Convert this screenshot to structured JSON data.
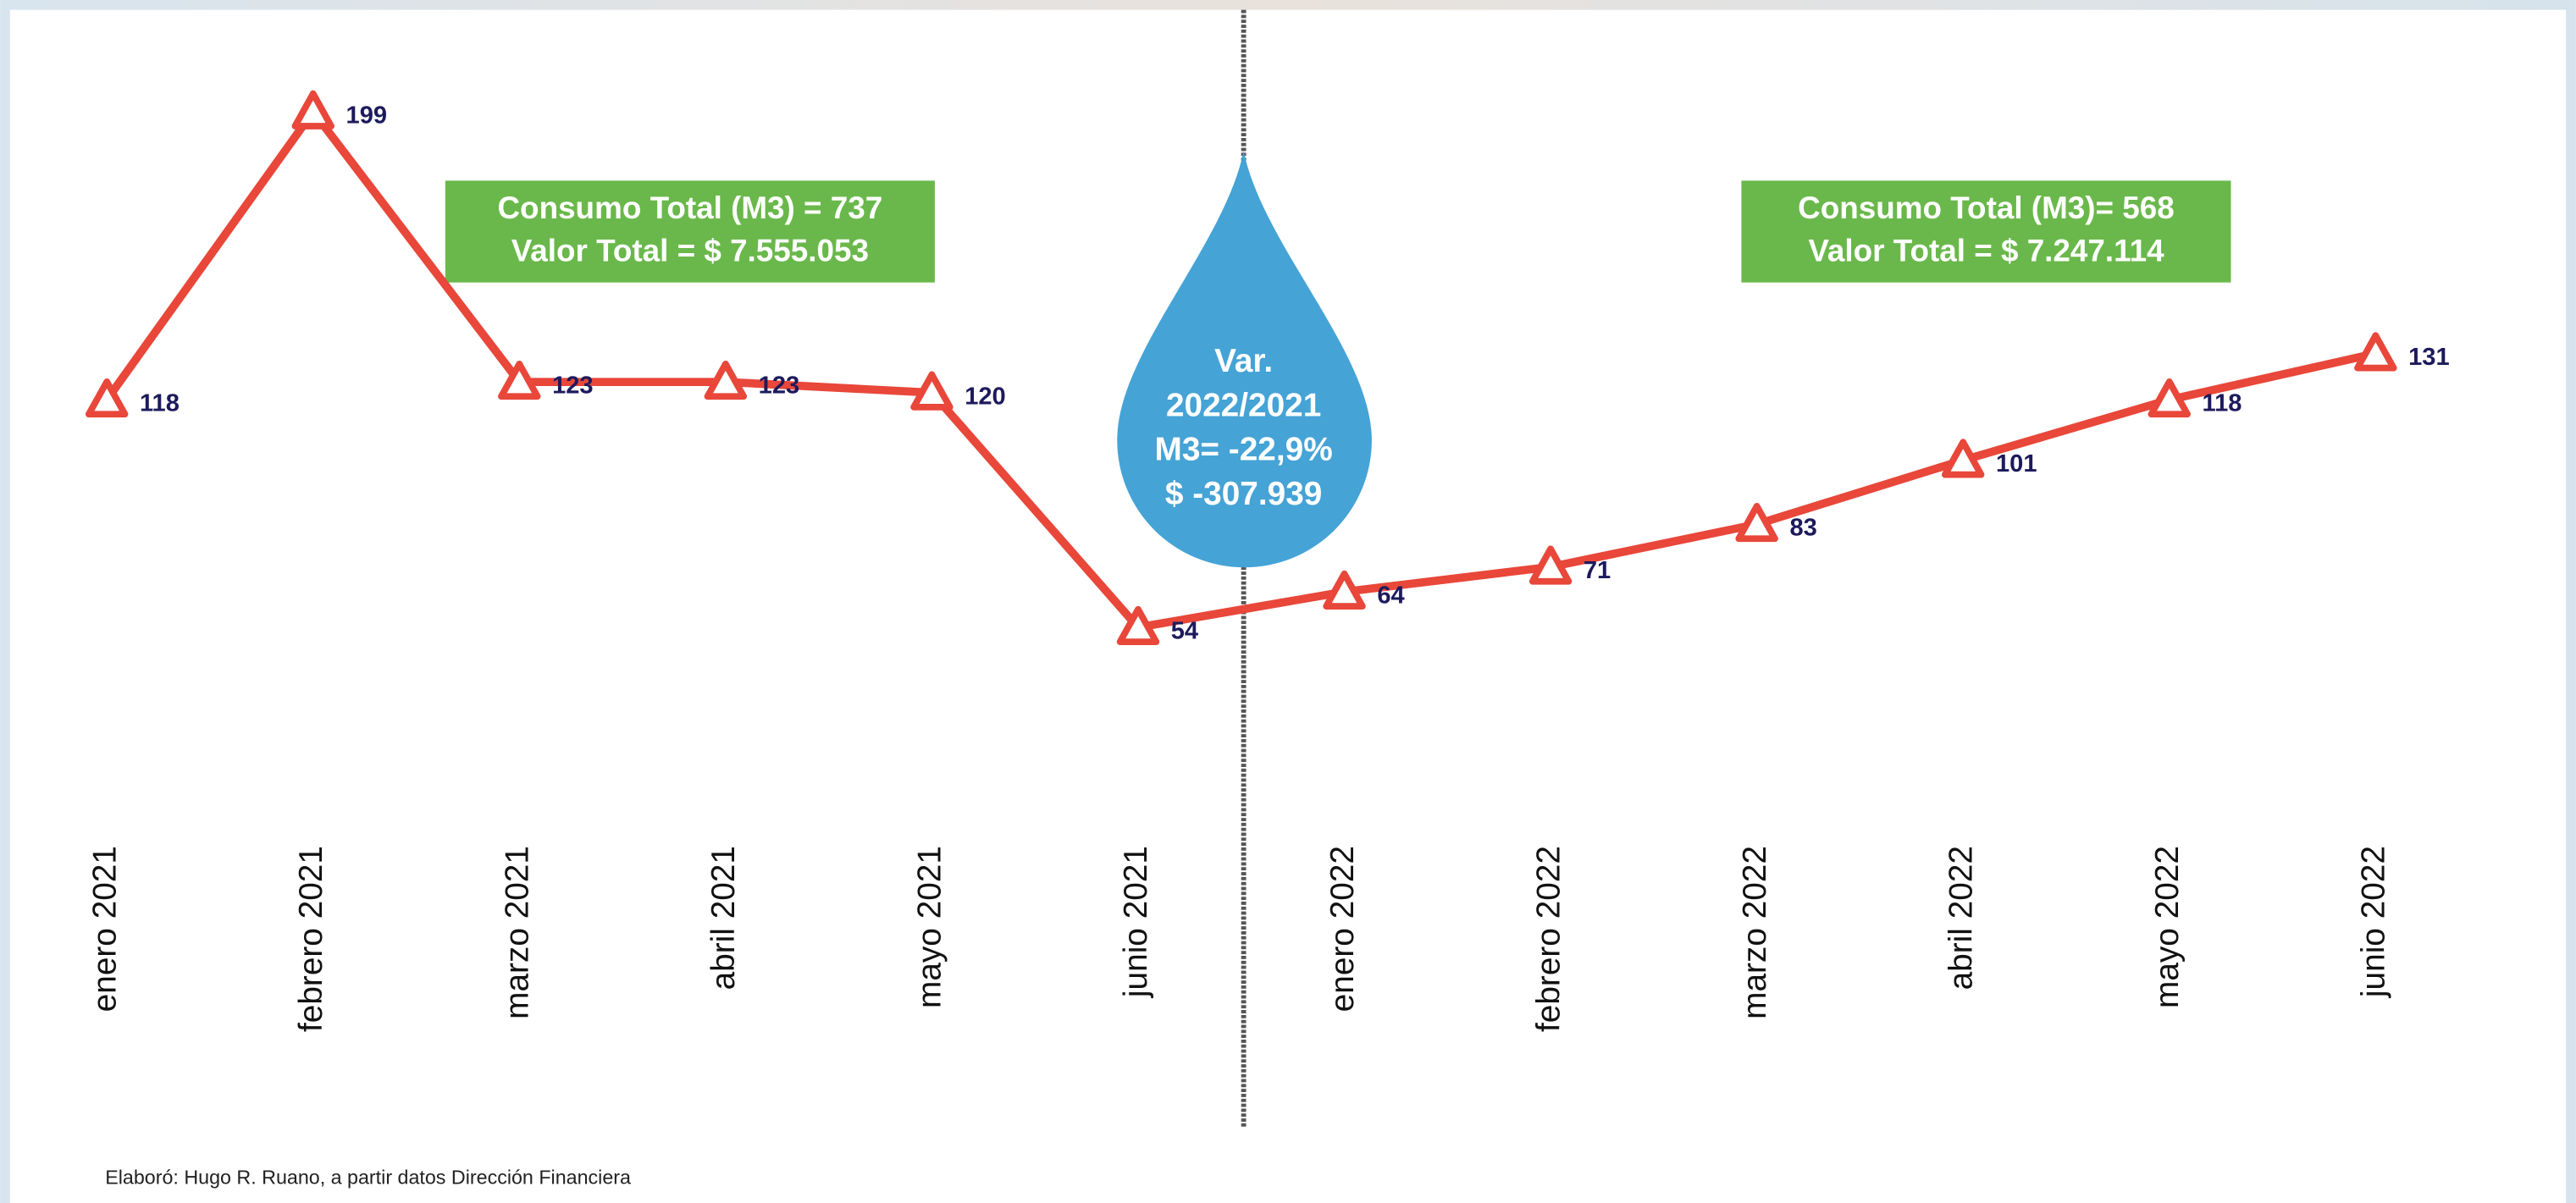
{
  "chart_data": {
    "type": "line",
    "categories": [
      "enero 2021",
      "febrero 2021",
      "marzo 2021",
      "abril 2021",
      "mayo 2021",
      "junio 2021",
      "enero 2022",
      "febrero 2022",
      "marzo 2022",
      "abril 2022",
      "mayo 2022",
      "junio 2022"
    ],
    "values": [
      118,
      199,
      123,
      123,
      120,
      54,
      64,
      71,
      83,
      101,
      118,
      131
    ],
    "color": "#e8473a",
    "boxes": [
      {
        "lines": [
          "Consumo Total (M3) =  737",
          "Valor Total =  $ 7.555.053"
        ],
        "color": "#6ab84b"
      },
      {
        "lines": [
          "Consumo Total (M3)= 568",
          "Valor Total = $ 7.247.114"
        ],
        "color": "#6ab84b"
      }
    ],
    "drop": {
      "lines": [
        "Var.",
        "2022/2021",
        "M3= -22,9%",
        "$ -307.939"
      ],
      "color": "#45a3d6"
    },
    "source": "Elaboró: Hugo R. Ruano, a partir datos Dirección Financiera"
  }
}
